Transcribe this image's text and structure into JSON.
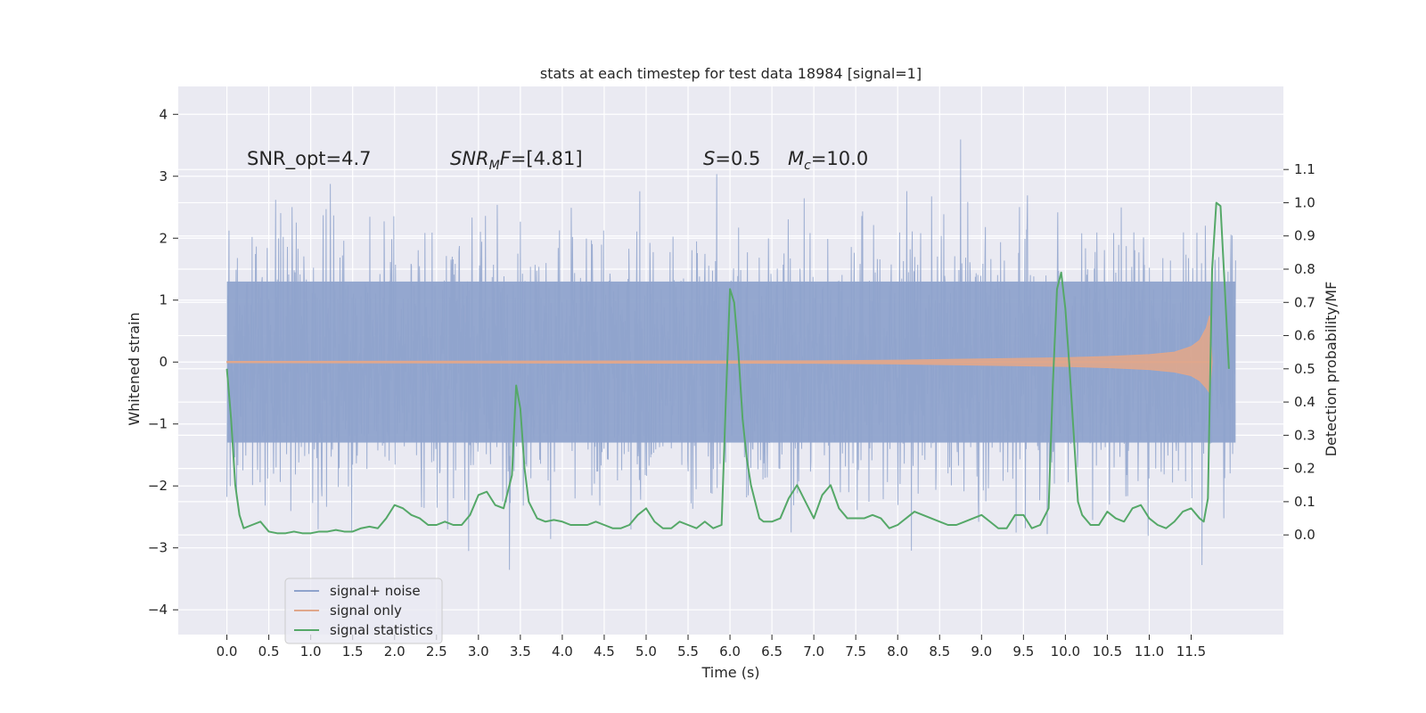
{
  "chart_data": {
    "type": "line",
    "title": "stats at each timestep for test data 18984 [signal=1]",
    "xlabel": "Time (s)",
    "ylabel": "Whitened strain",
    "y2label": "Detection probability/MF",
    "xlim": [
      -0.58,
      12.6
    ],
    "ylim": [
      -4.4,
      4.45
    ],
    "y2lim": [
      -0.3,
      1.35
    ],
    "grid": true,
    "legend": "bottom-left",
    "x_ticks": [
      0.0,
      0.5,
      1.0,
      1.5,
      2.0,
      2.5,
      3.0,
      3.5,
      4.0,
      4.5,
      5.0,
      5.5,
      6.0,
      6.5,
      7.0,
      7.5,
      8.0,
      8.5,
      9.0,
      9.5,
      10.0,
      10.5,
      11.0,
      11.5
    ],
    "x_tick_labels": [
      "0.0",
      "0.5",
      "1.0",
      "1.5",
      "2.0",
      "2.5",
      "3.0",
      "3.5",
      "4.0",
      "4.5",
      "5.0",
      "5.5",
      "6.0",
      "6.5",
      "7.0",
      "7.5",
      "8.0",
      "8.5",
      "9.0",
      "9.5",
      "10.0",
      "10.5",
      "11.0",
      "11.5"
    ],
    "y_ticks": [
      4,
      3,
      2,
      1,
      0,
      -1,
      -2,
      -3,
      -4
    ],
    "y_tick_labels": [
      "4",
      "3",
      "2",
      "1",
      "0",
      "−1",
      "−2",
      "−3",
      "−4"
    ],
    "y2_ticks": [
      1.1,
      1.0,
      0.9,
      0.8,
      0.7,
      0.6,
      0.5,
      0.4,
      0.3,
      0.2,
      0.1,
      0.0
    ],
    "y2_tick_labels": [
      "1.1",
      "1.0",
      "0.9",
      "0.8",
      "0.7",
      "0.6",
      "0.5",
      "0.4",
      "0.3",
      "0.2",
      "0.1",
      "0.0"
    ],
    "annotations": [
      {
        "parts": [
          {
            "t": "SNR_opt=4.7",
            "i": false
          }
        ]
      },
      {
        "parts": [
          {
            "t": "SNR",
            "i": true
          },
          {
            "t": "M",
            "i": true,
            "sub": true
          },
          {
            "t": "F",
            "i": true
          },
          {
            "t": "=[4.81]",
            "i": false
          }
        ]
      },
      {
        "parts": [
          {
            "t": "S",
            "i": true
          },
          {
            "t": "=0.5",
            "i": false
          }
        ]
      },
      {
        "parts": [
          {
            "t": "M",
            "i": true
          },
          {
            "t": "c",
            "i": true,
            "sub": true
          },
          {
            "t": "=10.0",
            "i": false
          }
        ]
      }
    ],
    "series": [
      {
        "name": "signal+ noise",
        "color": "#8fa3cc",
        "kind": "noise-band",
        "x_range": [
          0.0,
          12.03
        ],
        "core_band": [
          -1.3,
          1.3
        ],
        "max_excursion": [
          -3.98,
          4.1
        ]
      },
      {
        "name": "signal only",
        "color": "#e0a78c",
        "kind": "chirp-envelope",
        "x": [
          0.0,
          7.0,
          8.0,
          9.0,
          10.0,
          10.5,
          11.0,
          11.3,
          11.5,
          11.6,
          11.68,
          11.72,
          11.75
        ],
        "upper": [
          0.01,
          0.02,
          0.03,
          0.05,
          0.07,
          0.09,
          0.12,
          0.16,
          0.25,
          0.35,
          0.55,
          0.75,
          0.0
        ],
        "lower": [
          -0.01,
          -0.02,
          -0.03,
          -0.05,
          -0.07,
          -0.09,
          -0.12,
          -0.16,
          -0.22,
          -0.3,
          -0.42,
          -0.5,
          0.0
        ]
      },
      {
        "name": "signal statistics",
        "color": "#55a868",
        "axis": "right",
        "x": [
          0.0,
          0.05,
          0.1,
          0.15,
          0.2,
          0.3,
          0.4,
          0.5,
          0.6,
          0.7,
          0.8,
          0.9,
          1.0,
          1.1,
          1.2,
          1.3,
          1.4,
          1.5,
          1.6,
          1.7,
          1.8,
          1.9,
          2.0,
          2.1,
          2.2,
          2.3,
          2.4,
          2.5,
          2.6,
          2.7,
          2.8,
          2.9,
          3.0,
          3.1,
          3.2,
          3.3,
          3.4,
          3.45,
          3.5,
          3.55,
          3.6,
          3.7,
          3.8,
          3.9,
          4.0,
          4.1,
          4.2,
          4.3,
          4.4,
          4.5,
          4.6,
          4.7,
          4.8,
          4.9,
          5.0,
          5.1,
          5.2,
          5.3,
          5.4,
          5.5,
          5.6,
          5.7,
          5.8,
          5.9,
          5.95,
          6.0,
          6.05,
          6.1,
          6.15,
          6.2,
          6.25,
          6.3,
          6.35,
          6.4,
          6.5,
          6.6,
          6.7,
          6.8,
          6.9,
          7.0,
          7.1,
          7.2,
          7.3,
          7.4,
          7.5,
          7.6,
          7.7,
          7.8,
          7.9,
          8.0,
          8.1,
          8.2,
          8.3,
          8.4,
          8.5,
          8.6,
          8.7,
          8.8,
          8.9,
          9.0,
          9.1,
          9.2,
          9.3,
          9.4,
          9.5,
          9.6,
          9.7,
          9.8,
          9.85,
          9.9,
          9.95,
          10.0,
          10.05,
          10.1,
          10.15,
          10.2,
          10.3,
          10.4,
          10.5,
          10.6,
          10.7,
          10.8,
          10.9,
          11.0,
          11.1,
          11.2,
          11.3,
          11.4,
          11.5,
          11.6,
          11.65,
          11.7,
          11.75,
          11.8,
          11.85,
          11.9,
          11.95
        ],
        "y": [
          0.5,
          0.35,
          0.15,
          0.06,
          0.02,
          0.03,
          0.04,
          0.01,
          0.005,
          0.005,
          0.01,
          0.005,
          0.005,
          0.01,
          0.01,
          0.015,
          0.01,
          0.01,
          0.02,
          0.025,
          0.02,
          0.05,
          0.09,
          0.08,
          0.06,
          0.05,
          0.03,
          0.03,
          0.04,
          0.03,
          0.03,
          0.06,
          0.12,
          0.13,
          0.09,
          0.08,
          0.18,
          0.45,
          0.38,
          0.2,
          0.1,
          0.05,
          0.04,
          0.045,
          0.04,
          0.03,
          0.03,
          0.03,
          0.04,
          0.03,
          0.02,
          0.02,
          0.03,
          0.06,
          0.08,
          0.04,
          0.02,
          0.02,
          0.04,
          0.03,
          0.02,
          0.04,
          0.02,
          0.03,
          0.4,
          0.74,
          0.7,
          0.55,
          0.35,
          0.23,
          0.15,
          0.1,
          0.05,
          0.04,
          0.04,
          0.05,
          0.11,
          0.15,
          0.1,
          0.05,
          0.12,
          0.15,
          0.08,
          0.05,
          0.05,
          0.05,
          0.06,
          0.05,
          0.02,
          0.03,
          0.05,
          0.07,
          0.06,
          0.05,
          0.04,
          0.03,
          0.03,
          0.04,
          0.05,
          0.06,
          0.04,
          0.02,
          0.02,
          0.06,
          0.06,
          0.02,
          0.03,
          0.08,
          0.45,
          0.74,
          0.79,
          0.68,
          0.5,
          0.3,
          0.1,
          0.06,
          0.03,
          0.03,
          0.07,
          0.05,
          0.04,
          0.08,
          0.09,
          0.05,
          0.03,
          0.02,
          0.04,
          0.07,
          0.08,
          0.05,
          0.04,
          0.11,
          0.8,
          1.0,
          0.99,
          0.75,
          0.5
        ]
      }
    ]
  }
}
